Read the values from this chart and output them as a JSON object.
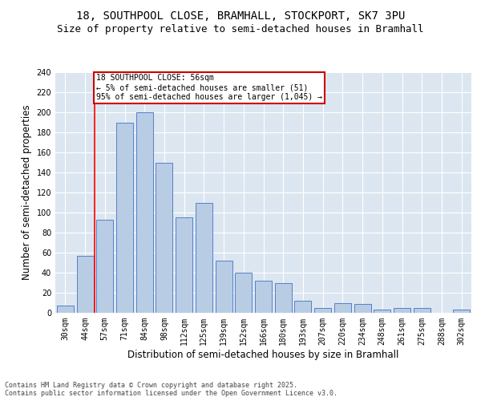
{
  "title1": "18, SOUTHPOOL CLOSE, BRAMHALL, STOCKPORT, SK7 3PU",
  "title2": "Size of property relative to semi-detached houses in Bramhall",
  "xlabel": "Distribution of semi-detached houses by size in Bramhall",
  "ylabel": "Number of semi-detached properties",
  "categories": [
    "30sqm",
    "44sqm",
    "57sqm",
    "71sqm",
    "84sqm",
    "98sqm",
    "112sqm",
    "125sqm",
    "139sqm",
    "152sqm",
    "166sqm",
    "180sqm",
    "193sqm",
    "207sqm",
    "220sqm",
    "234sqm",
    "248sqm",
    "261sqm",
    "275sqm",
    "288sqm",
    "302sqm"
  ],
  "values": [
    7,
    57,
    93,
    190,
    200,
    150,
    95,
    110,
    52,
    40,
    32,
    30,
    12,
    5,
    10,
    9,
    3,
    5,
    5,
    0,
    3
  ],
  "bar_color": "#b8cce4",
  "bar_edge_color": "#4472c4",
  "annotation_text": "18 SOUTHPOOL CLOSE: 56sqm\n← 5% of semi-detached houses are smaller (51)\n95% of semi-detached houses are larger (1,045) →",
  "annotation_box_color": "#ffffff",
  "annotation_box_edge": "#cc0000",
  "red_line_x": 1.5,
  "ylim": [
    0,
    240
  ],
  "yticks": [
    0,
    20,
    40,
    60,
    80,
    100,
    120,
    140,
    160,
    180,
    200,
    220,
    240
  ],
  "footer": "Contains HM Land Registry data © Crown copyright and database right 2025.\nContains public sector information licensed under the Open Government Licence v3.0.",
  "fig_bg_color": "#ffffff",
  "plot_bg_color": "#dce6f1",
  "title_fontsize": 10,
  "subtitle_fontsize": 9,
  "tick_fontsize": 7,
  "label_fontsize": 8.5,
  "footer_fontsize": 6
}
